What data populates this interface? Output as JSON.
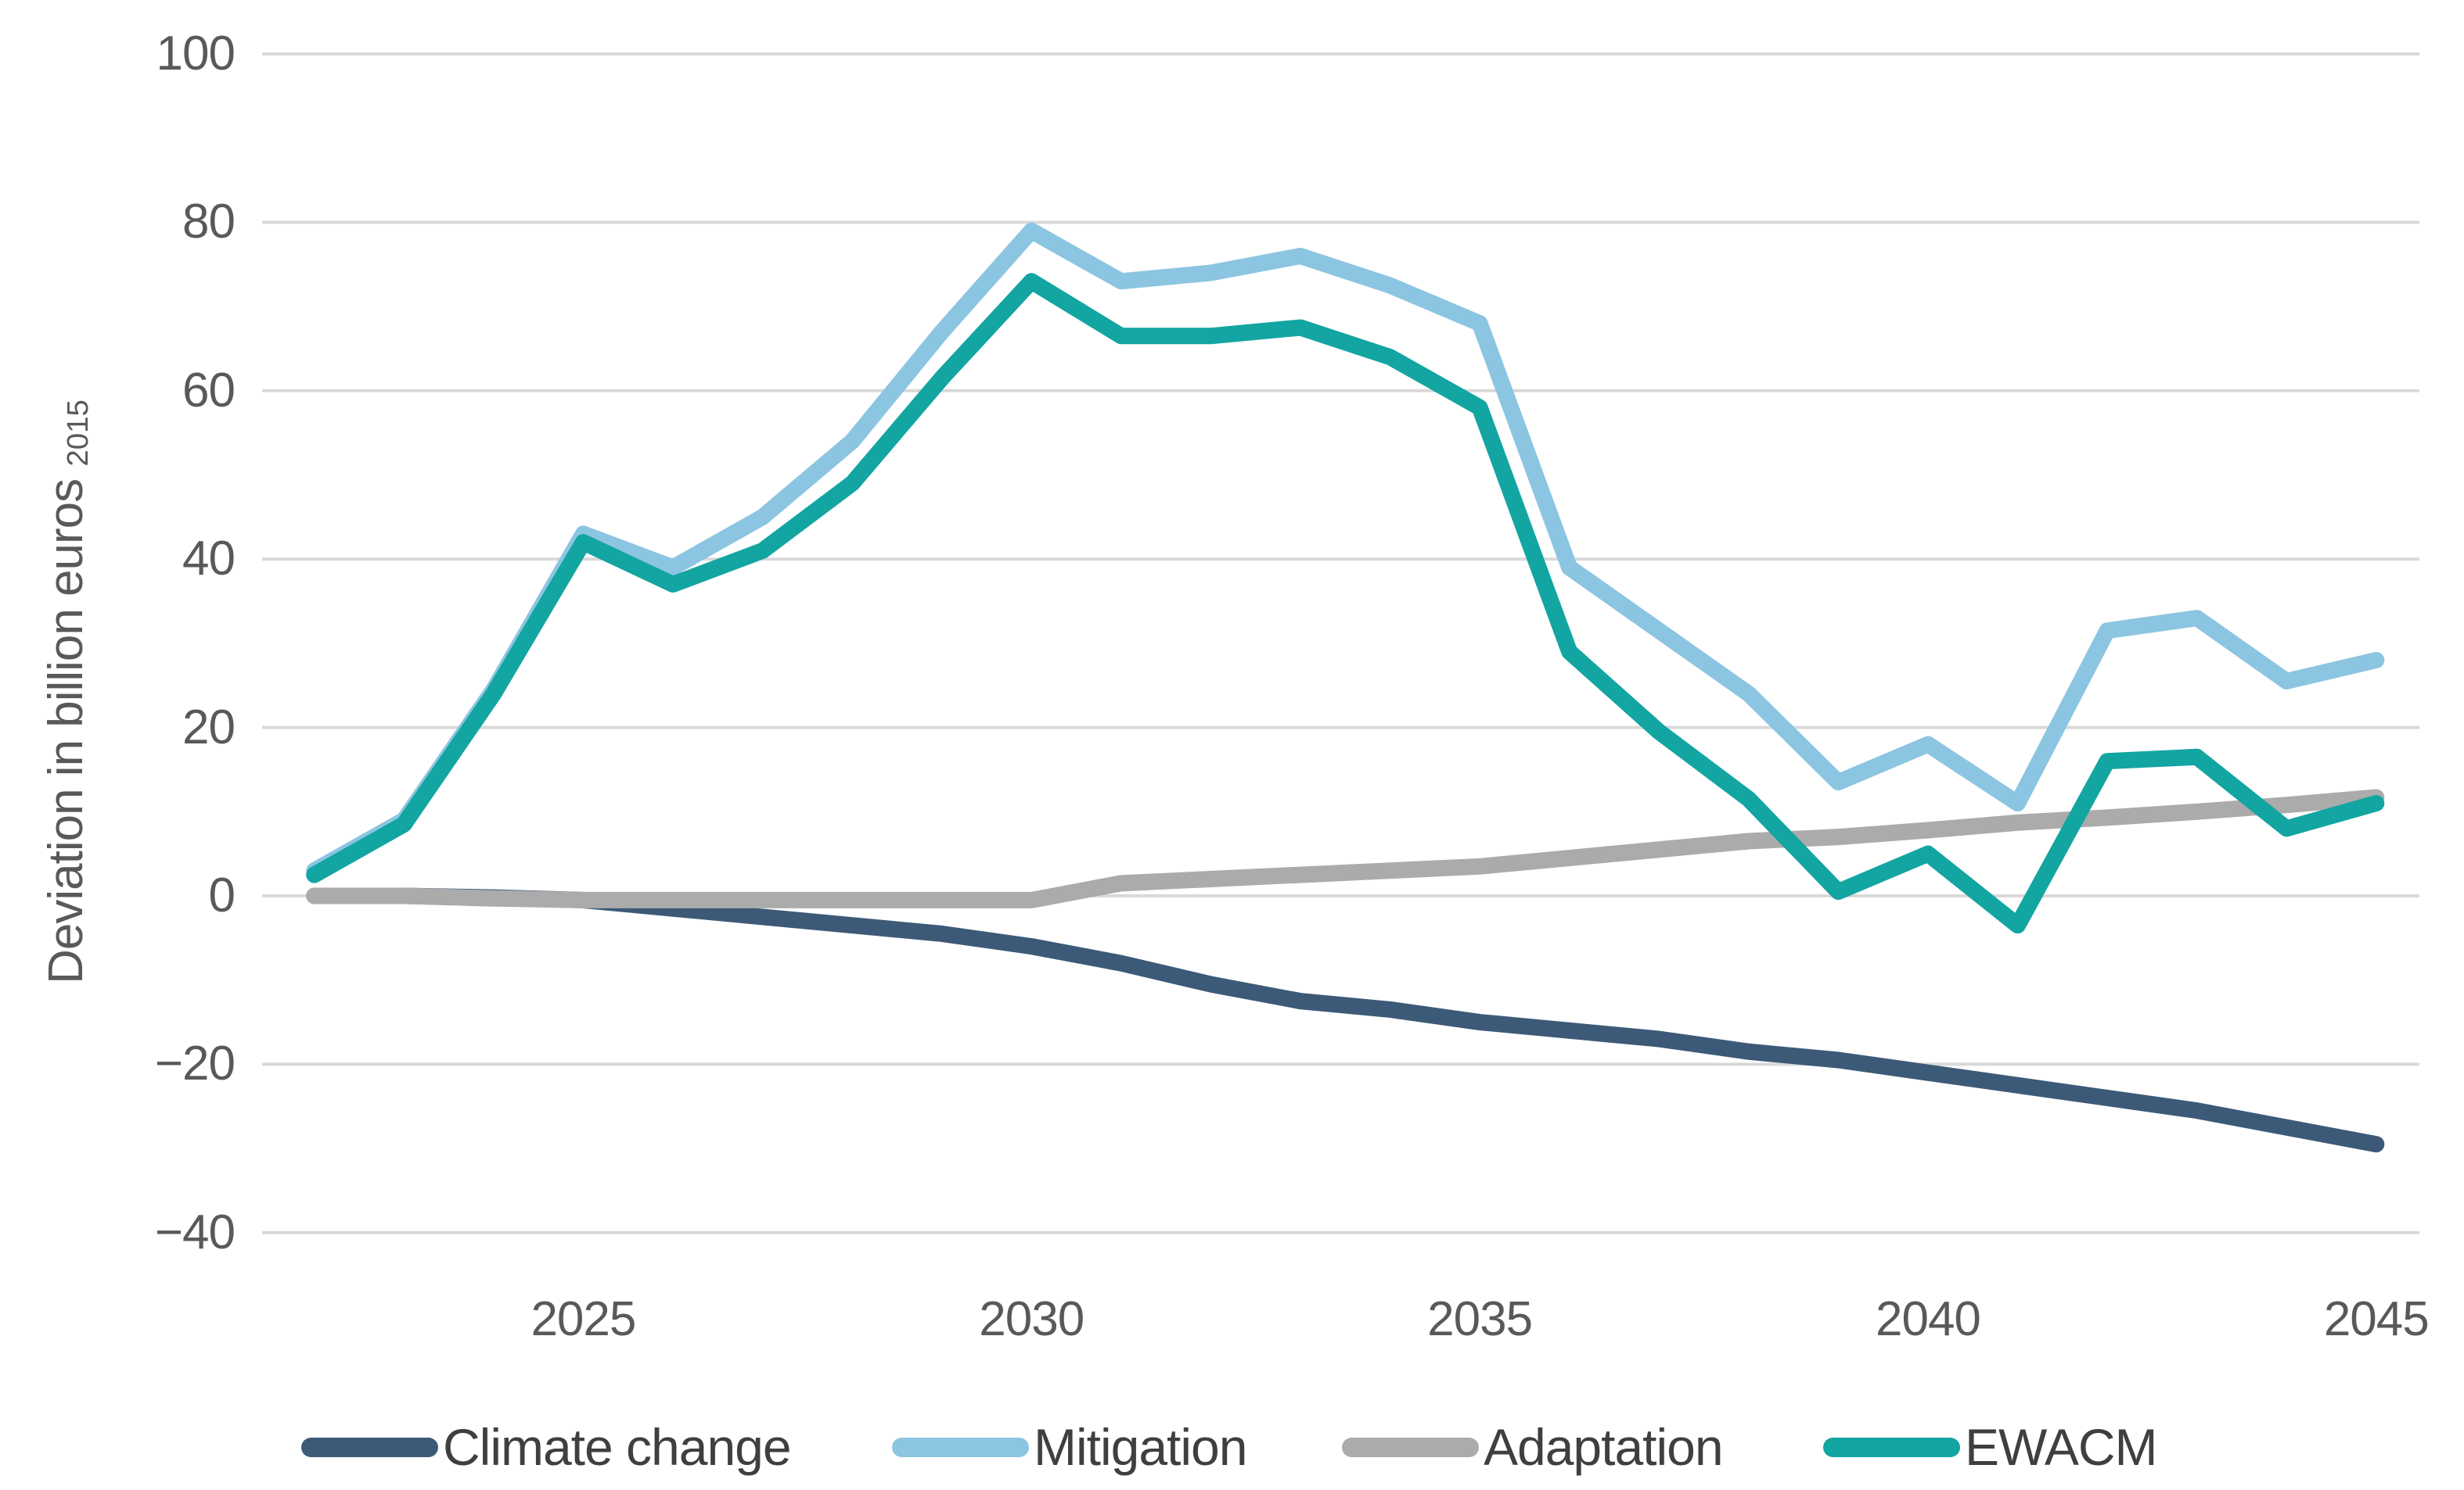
{
  "chart_data": {
    "type": "line",
    "title": "",
    "xlabel": "",
    "ylabel": "Deviation in billion euros",
    "ylabel_subscript": "2015",
    "x": [
      2022,
      2023,
      2024,
      2025,
      2026,
      2027,
      2028,
      2029,
      2030,
      2031,
      2032,
      2033,
      2034,
      2035,
      2036,
      2037,
      2038,
      2039,
      2040,
      2041,
      2042,
      2043,
      2044,
      2045
    ],
    "x_tick_labels": [
      "2025",
      "2030",
      "2035",
      "2040",
      "2045"
    ],
    "x_tick_years": [
      2025,
      2030,
      2035,
      2040,
      2045
    ],
    "y_ticks": [
      100,
      80,
      60,
      40,
      20,
      0,
      -20,
      -40
    ],
    "y_tick_labels": [
      "100",
      "80",
      "60",
      "40",
      "20",
      "0",
      "−20",
      "−40"
    ],
    "ylim": [
      -40,
      100
    ],
    "grid": "horizontal",
    "gridline_color": "#d9d9d9",
    "axis_text_color": "#595959",
    "legend_position": "bottom",
    "series": [
      {
        "name": "Climate change",
        "color": "#3c5a78",
        "values": [
          0,
          0,
          -0.2,
          -0.5,
          -1.5,
          -2.5,
          -3.5,
          -4.5,
          -6,
          -8,
          -10.5,
          -12.5,
          -13.5,
          -15,
          -16,
          -17,
          -18.5,
          -19.5,
          -21,
          -22.5,
          -24,
          -25.5,
          -27.5,
          -29.5
        ]
      },
      {
        "name": "Mitigation",
        "color": "#8cc5e1",
        "values": [
          3,
          9,
          24.5,
          43,
          39,
          45,
          54,
          67,
          79,
          73,
          74,
          76,
          72.5,
          68,
          39,
          31.5,
          24,
          13.5,
          18,
          11,
          31.5,
          33,
          25.5,
          28
        ]
      },
      {
        "name": "Adaptation",
        "color": "#ababab",
        "values": [
          0,
          0,
          -0.3,
          -0.5,
          -0.5,
          -0.5,
          -0.5,
          -0.5,
          -0.5,
          1.5,
          2,
          2.5,
          3,
          3.5,
          4.5,
          5.5,
          6.5,
          7,
          7.8,
          8.7,
          9.3,
          10,
          10.8,
          11.7
        ]
      },
      {
        "name": "EWACM",
        "color": "#12a5a2",
        "values": [
          2.5,
          8.5,
          24,
          42,
          37,
          41,
          49,
          61.5,
          73,
          66.5,
          66.5,
          67.5,
          64,
          58,
          29,
          19.5,
          11.5,
          0.5,
          5,
          -3.5,
          16,
          16.5,
          8,
          11
        ]
      }
    ]
  }
}
